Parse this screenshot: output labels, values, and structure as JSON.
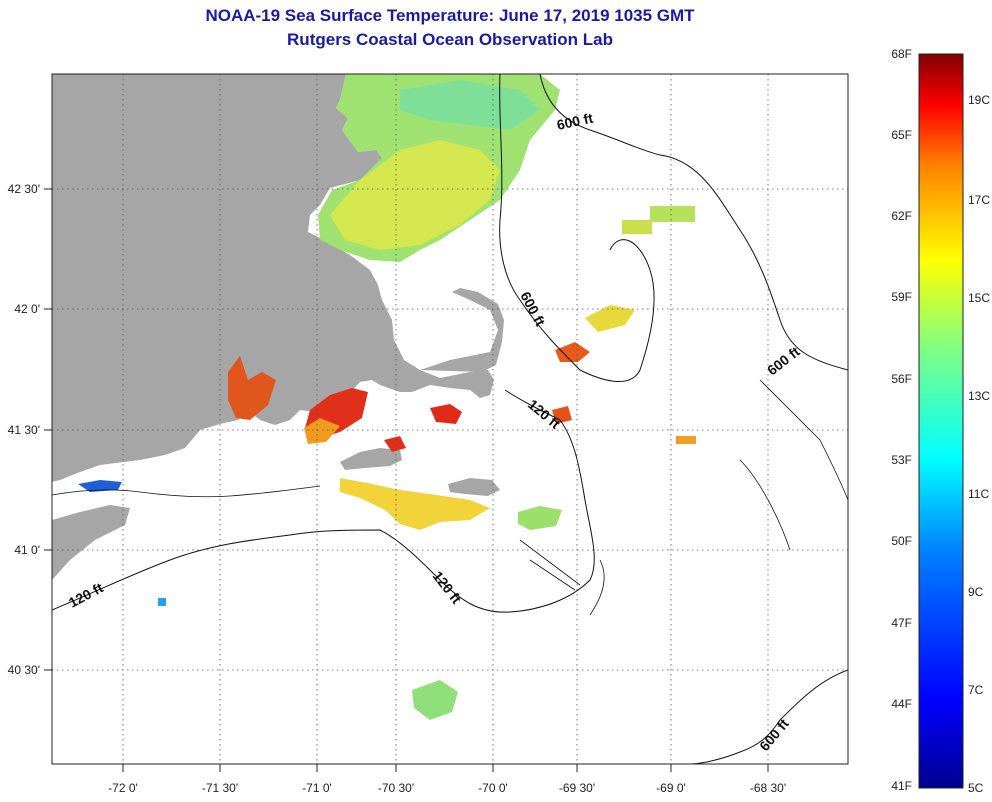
{
  "title_line1": "NOAA-19 Sea Surface Temperature:  June 17, 2019 1035 GMT",
  "title_line2": "Rutgers Coastal Ocean Observation Lab",
  "lon_labels": [
    "-72 0'",
    "-71 30'",
    "-71 0'",
    "-70 30'",
    "-70 0'",
    "-69 30'",
    "-69 0'",
    "-68 30'"
  ],
  "lat_labels": [
    "42 30'",
    "42 0'",
    "41 30'",
    "41 0'",
    "40 30'"
  ],
  "depth_labels": [
    "600 ft",
    "600 ft",
    "600 ft",
    "120 ft",
    "120 ft",
    "120 ft",
    "600 ft"
  ],
  "colorbar_f": [
    "68F",
    "65F",
    "62F",
    "59F",
    "56F",
    "53F",
    "50F",
    "47F",
    "44F",
    "41F"
  ],
  "colorbar_c": [
    "19C",
    "17C",
    "15C",
    "13C",
    "11C",
    "9C",
    "7C",
    "5C"
  ],
  "colors": {
    "title": "#1a1aa6",
    "land": "#a6a6a6",
    "grid": "#555555",
    "warm": "#d8281a",
    "mid": "#e8e632",
    "cool": "#7fe07a",
    "cold": "#1f5fd8"
  }
}
